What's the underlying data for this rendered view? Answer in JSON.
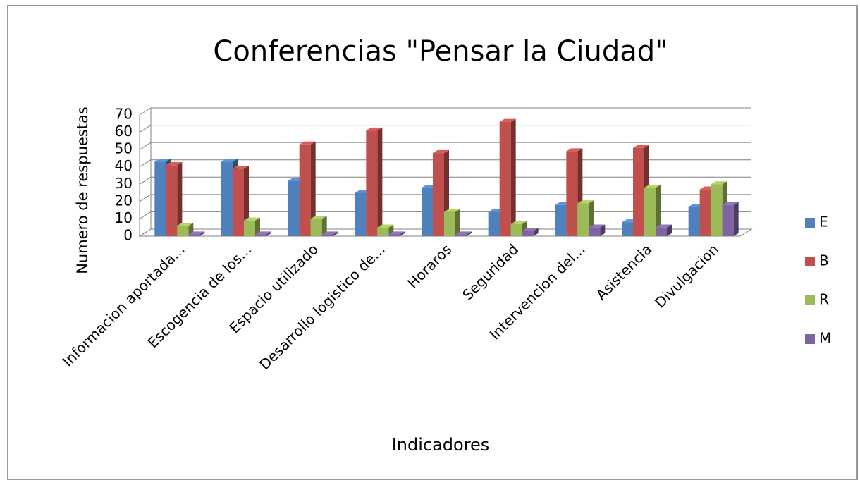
{
  "chart_data": {
    "type": "bar3d",
    "title": "Conferencias \"Pensar la Ciudad\"",
    "x_label": "Indicadores",
    "y_label": "Numero de respuestas",
    "categories": [
      "Informacion aportada...",
      "Escogencia de los...",
      "Espacio utilizado",
      "Desarrollo logistico de...",
      "Horaros",
      "Seguridad",
      "Intervencion del...",
      "Asistencia",
      "Divulgacion"
    ],
    "series": [
      {
        "name": "E",
        "color": "#4f81bd",
        "values": [
          43,
          43,
          32,
          25,
          28,
          14,
          18,
          8,
          17
        ]
      },
      {
        "name": "B",
        "color": "#c0504d",
        "values": [
          41,
          39,
          53,
          61,
          48,
          66,
          49,
          51,
          27
        ]
      },
      {
        "name": "R",
        "color": "#9bbb59",
        "values": [
          6,
          9,
          10,
          5,
          14,
          7,
          19,
          28,
          30
        ]
      },
      {
        "name": "M",
        "color": "#8064a2",
        "values": [
          1,
          1,
          1,
          1,
          1,
          3,
          5,
          5,
          18
        ]
      }
    ],
    "ylim": [
      0,
      70
    ],
    "yticks": [
      0,
      10,
      20,
      30,
      40,
      50,
      60,
      70
    ],
    "grid": true,
    "legend": "right"
  }
}
